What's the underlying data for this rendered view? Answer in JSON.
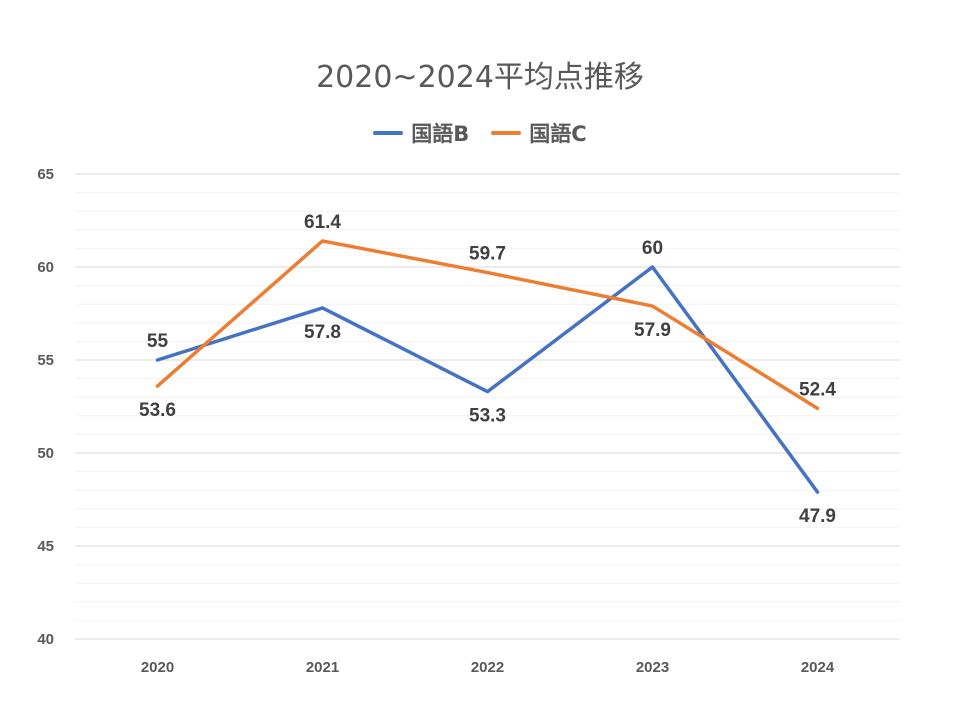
{
  "chart_data": {
    "type": "line",
    "title": "2020~2024平均点推移",
    "categories": [
      "2020",
      "2021",
      "2022",
      "2023",
      "2024"
    ],
    "series": [
      {
        "name": "国語B",
        "color": "#4472C4",
        "values": [
          55,
          57.8,
          53.3,
          60,
          47.9
        ]
      },
      {
        "name": "国語C",
        "color": "#ED7D31",
        "values": [
          53.6,
          61.4,
          59.7,
          57.9,
          52.4
        ]
      }
    ],
    "ylim": [
      40,
      65
    ],
    "yticks": [
      40,
      45,
      50,
      55,
      60,
      65
    ],
    "xlabel": "",
    "ylabel": "",
    "legend_position": "top",
    "grid": true
  }
}
